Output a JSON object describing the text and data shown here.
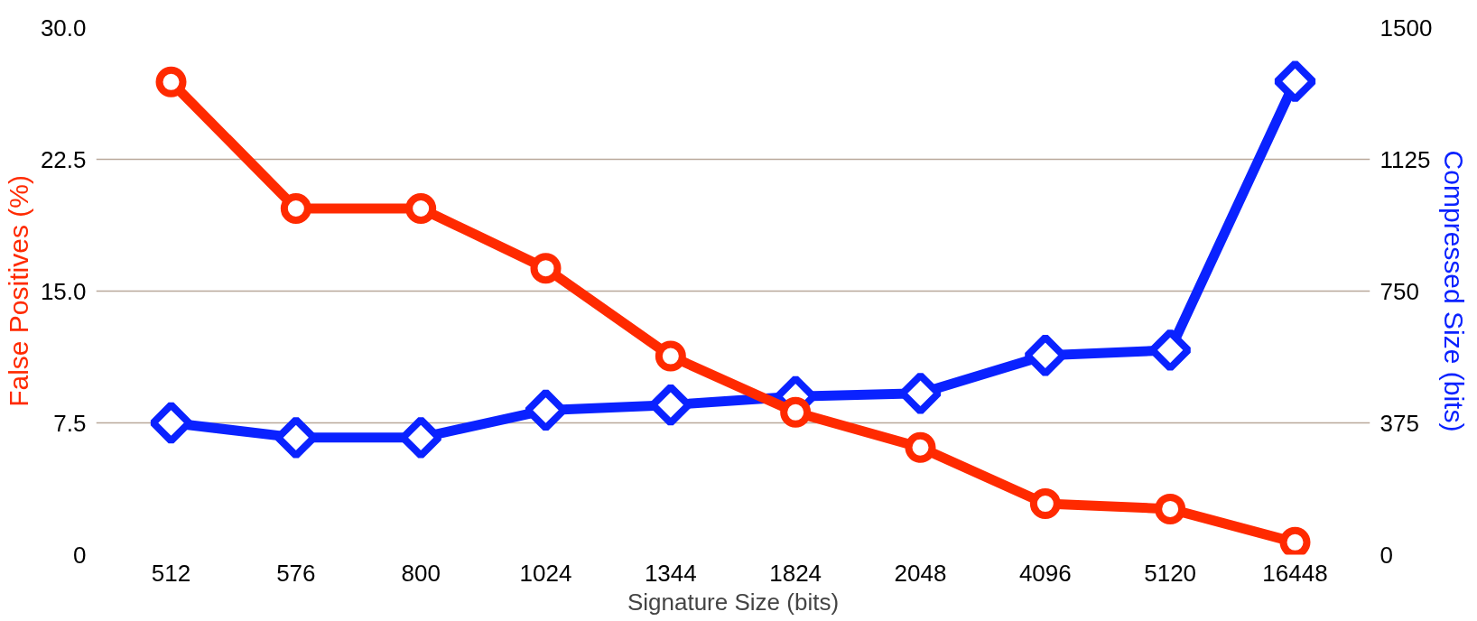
{
  "chart_data": {
    "type": "line",
    "xlabel": "Signature Size (bits)",
    "ylabel": "False Positives (%)",
    "y2label": "Compressed Size (bits)",
    "categories": [
      "512",
      "576",
      "800",
      "1024",
      "1344",
      "1824",
      "2048",
      "4096",
      "5120",
      "16448"
    ],
    "series": [
      {
        "color": "#ff2a00",
        "marker": "circle",
        "values": [
          26.9,
          19.7,
          19.7,
          16.3,
          11.3,
          8.1,
          6.1,
          2.9,
          2.6,
          0.7
        ]
      },
      {
        "color": "#0a22ff",
        "marker": "diamond",
        "axis": "y2",
        "values": [
          375,
          333,
          333,
          411,
          426,
          450,
          459,
          567,
          582,
          1347
        ]
      }
    ],
    "ylim": [
      0,
      30
    ],
    "yticks": [
      0,
      {
        "value": 7.5,
        "label": "7.5"
      },
      {
        "value": 15,
        "label": "15.0"
      },
      {
        "value": 22.5,
        "label": "22.5"
      },
      {
        "value": 30,
        "label": "30.0"
      }
    ],
    "y2lim": [
      0,
      1500
    ],
    "y2ticks": [
      0,
      375,
      750,
      1125,
      1500
    ],
    "grid": "y",
    "line_style": "solid"
  }
}
